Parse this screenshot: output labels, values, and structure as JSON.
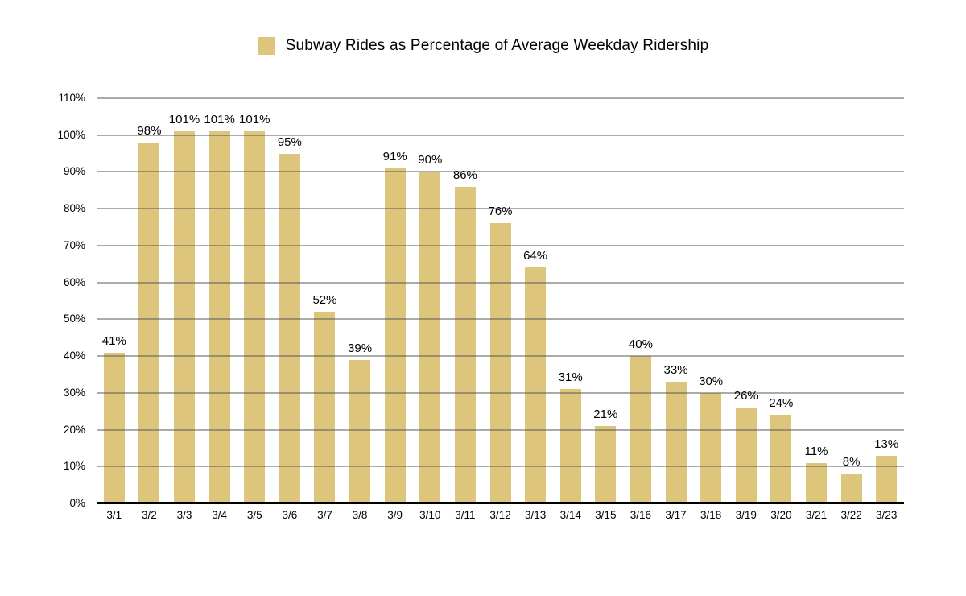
{
  "chart_data": {
    "type": "bar",
    "title": "Subway Rides as Percentage of Average Weekday Ridership",
    "xlabel": "",
    "ylabel": "",
    "categories": [
      "3/1",
      "3/2",
      "3/3",
      "3/4",
      "3/5",
      "3/6",
      "3/7",
      "3/8",
      "3/9",
      "3/10",
      "3/11",
      "3/12",
      "3/13",
      "3/14",
      "3/15",
      "3/16",
      "3/17",
      "3/18",
      "3/19",
      "3/20",
      "3/21",
      "3/22",
      "3/23"
    ],
    "values": [
      41,
      98,
      101,
      101,
      101,
      95,
      52,
      39,
      91,
      90,
      86,
      76,
      64,
      31,
      21,
      40,
      33,
      30,
      26,
      24,
      11,
      8,
      13
    ],
    "data_labels": [
      "41%",
      "98%",
      "101%",
      "101%",
      "101%",
      "95%",
      "52%",
      "39%",
      "91%",
      "90%",
      "86%",
      "76%",
      "64%",
      "31%",
      "21%",
      "40%",
      "33%",
      "30%",
      "26%",
      "24%",
      "11%",
      "8%",
      "13%"
    ],
    "y_ticks": [
      "0%",
      "10%",
      "20%",
      "30%",
      "40%",
      "50%",
      "60%",
      "70%",
      "80%",
      "90%",
      "100%",
      "110%"
    ],
    "y_tick_values": [
      0,
      10,
      20,
      30,
      40,
      50,
      60,
      70,
      80,
      90,
      100,
      110
    ],
    "ylim": [
      0,
      110
    ],
    "grid": true,
    "gridlines_over_bars": true,
    "legend_position": "top",
    "colors": {
      "bar": "#DDC57C",
      "gridline": "#ABABAB",
      "axis": "#000000",
      "text": "#000000",
      "background": "#FFFFFF"
    }
  }
}
